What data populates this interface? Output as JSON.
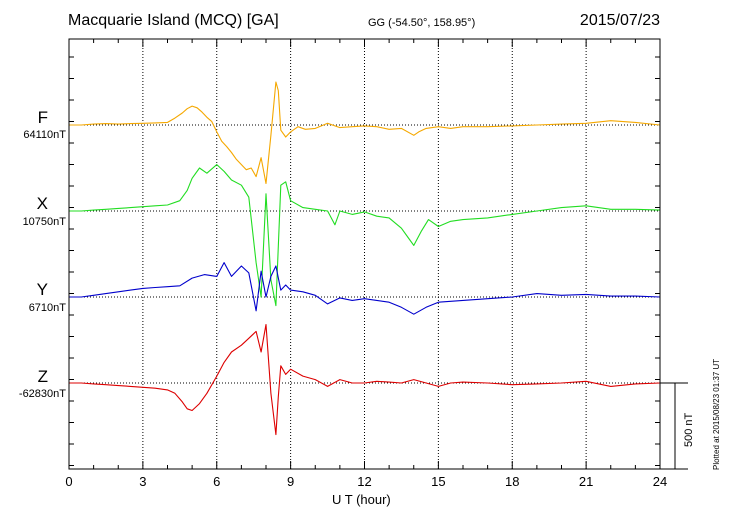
{
  "chart_data": {
    "type": "line",
    "title": "Macquarie Island (MCQ)  [GA]",
    "subtitle": "GG (-54.50°, 158.95°)",
    "date": "2015/07/23",
    "xlabel": "U T (hour)",
    "xlim": [
      0,
      24
    ],
    "xticks": [
      "0",
      "3",
      "6",
      "9",
      "12",
      "15",
      "18",
      "21",
      "24"
    ],
    "grid": true,
    "scale_bar": "500 nT",
    "footer": "Plotted at 2015/08/23 01:37 UT",
    "series": [
      {
        "name": "F",
        "baseline": "64110nT",
        "color": "#f5a800",
        "x": [
          0,
          0.5,
          1,
          1.5,
          2,
          2.5,
          3,
          3.5,
          4,
          4.3,
          4.6,
          4.8,
          5,
          5.2,
          5.4,
          5.6,
          5.8,
          6,
          6.2,
          6.4,
          6.6,
          6.8,
          7,
          7.2,
          7.4,
          7.6,
          7.8,
          8,
          8.2,
          8.4,
          8.5,
          8.6,
          8.8,
          9,
          9.3,
          9.6,
          10,
          10.5,
          11,
          11.5,
          12,
          12.5,
          13,
          13.5,
          14,
          14.2,
          14.5,
          15,
          15.5,
          16,
          17,
          18,
          19,
          20,
          21,
          22,
          23,
          24
        ],
        "values": [
          0,
          0,
          5,
          8,
          5,
          8,
          10,
          12,
          15,
          40,
          70,
          95,
          110,
          100,
          75,
          45,
          20,
          -40,
          -95,
          -125,
          -160,
          -200,
          -230,
          -260,
          -250,
          -300,
          -190,
          -340,
          -60,
          250,
          200,
          -30,
          -70,
          -40,
          -10,
          -25,
          -20,
          10,
          -15,
          -10,
          -5,
          -10,
          -25,
          -20,
          -60,
          -40,
          -20,
          -10,
          -20,
          -10,
          -10,
          -5,
          0,
          5,
          10,
          25,
          15,
          0
        ]
      },
      {
        "name": "X",
        "baseline": "10750nT",
        "color": "#22dd22",
        "x": [
          0,
          0.5,
          1,
          1.5,
          2,
          2.5,
          3,
          3.5,
          4,
          4.5,
          4.8,
          5,
          5.3,
          5.6,
          6,
          6.3,
          6.6,
          7,
          7.3,
          7.6,
          7.8,
          8,
          8.2,
          8.4,
          8.6,
          8.8,
          9,
          9.5,
          10,
          10.5,
          10.8,
          11,
          11.5,
          12,
          12.5,
          13,
          13.5,
          13.8,
          14,
          14.3,
          14.6,
          15,
          15.5,
          16,
          17,
          18,
          19,
          20,
          21,
          22,
          23,
          24
        ],
        "values": [
          0,
          0,
          5,
          10,
          15,
          20,
          25,
          30,
          35,
          60,
          120,
          190,
          250,
          220,
          270,
          230,
          180,
          150,
          80,
          -300,
          -500,
          100,
          -400,
          -550,
          150,
          170,
          60,
          20,
          10,
          0,
          -80,
          0,
          -20,
          -5,
          -30,
          -40,
          -100,
          -160,
          -200,
          -120,
          -50,
          -90,
          -60,
          -50,
          -40,
          -20,
          0,
          20,
          30,
          10,
          10,
          5
        ]
      },
      {
        "name": "Y",
        "baseline": "6710nT",
        "color": "#0000cc",
        "x": [
          0,
          0.5,
          1,
          1.5,
          2,
          2.5,
          3,
          3.5,
          4,
          4.5,
          5,
          5.5,
          6,
          6.3,
          6.6,
          7,
          7.3,
          7.6,
          7.8,
          8,
          8.2,
          8.4,
          8.6,
          8.8,
          9,
          9.5,
          10,
          10.5,
          11,
          11.5,
          12,
          13,
          13.5,
          14,
          14.5,
          15,
          16,
          17,
          18,
          19,
          20,
          21,
          22,
          23,
          24
        ],
        "values": [
          0,
          0,
          10,
          20,
          30,
          40,
          50,
          55,
          60,
          65,
          110,
          130,
          120,
          200,
          120,
          180,
          140,
          -80,
          150,
          0,
          120,
          180,
          40,
          70,
          40,
          30,
          10,
          -40,
          -5,
          -20,
          -10,
          -30,
          -60,
          -100,
          -60,
          -30,
          -20,
          -10,
          0,
          20,
          10,
          15,
          5,
          5,
          0
        ]
      },
      {
        "name": "Z",
        "baseline": "-62830nT",
        "color": "#dd0000",
        "x": [
          0,
          0.5,
          1,
          1.5,
          2,
          2.5,
          3,
          3.5,
          4,
          4.3,
          4.6,
          4.8,
          5,
          5.3,
          5.6,
          6,
          6.3,
          6.6,
          7,
          7.3,
          7.6,
          7.8,
          8,
          8.2,
          8.4,
          8.5,
          8.6,
          8.8,
          9,
          9.5,
          10,
          10.5,
          11,
          11.5,
          12,
          12.5,
          13,
          13.5,
          14,
          14.5,
          15,
          15.5,
          16,
          17,
          18,
          19,
          20,
          21,
          22,
          23,
          24
        ],
        "values": [
          0,
          0,
          -5,
          -10,
          -15,
          -20,
          -25,
          -30,
          -40,
          -60,
          -110,
          -150,
          -160,
          -120,
          -60,
          40,
          120,
          180,
          220,
          260,
          300,
          180,
          340,
          -60,
          -300,
          -80,
          100,
          50,
          80,
          40,
          20,
          -20,
          20,
          0,
          0,
          10,
          5,
          0,
          20,
          0,
          -20,
          0,
          5,
          0,
          -10,
          -5,
          0,
          10,
          -20,
          -5,
          0
        ]
      }
    ]
  }
}
